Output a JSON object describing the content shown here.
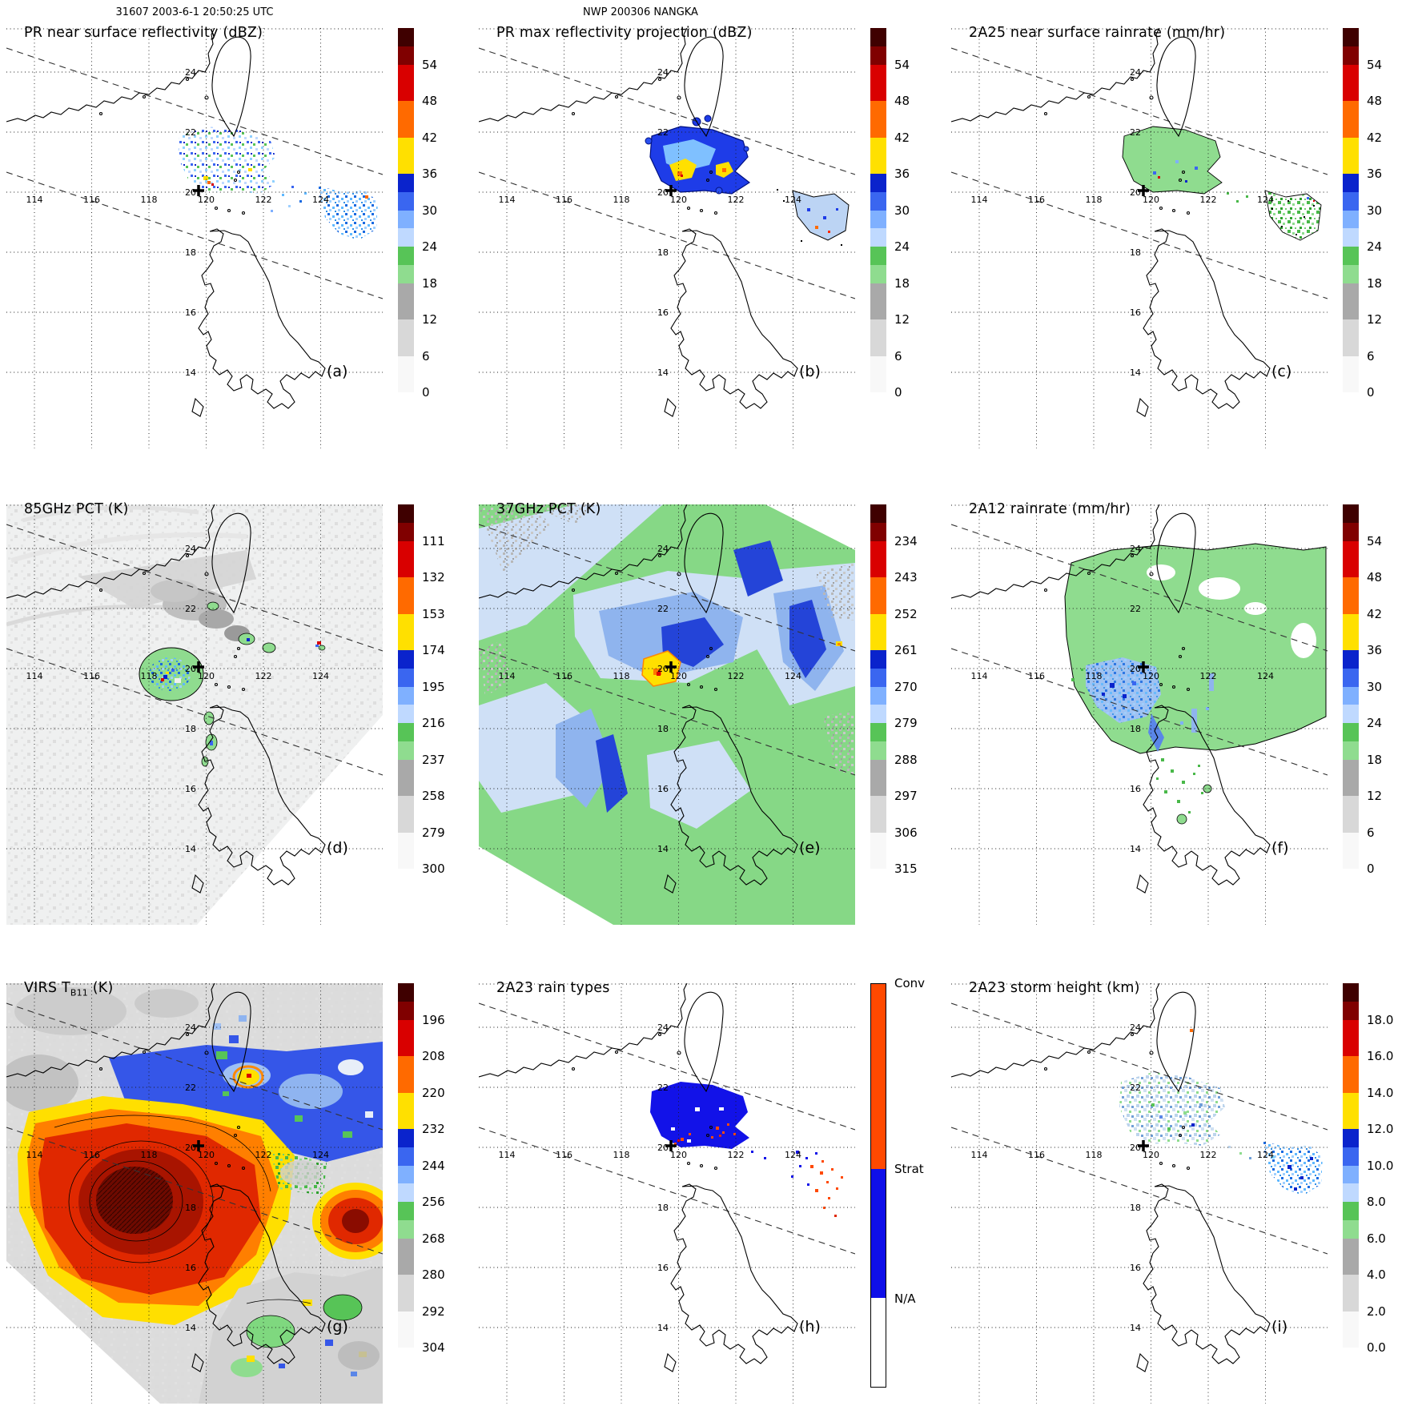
{
  "figure": {
    "header_left": "31607 2003-6-1 20:50:25 UTC",
    "header_center": "NWP 200306 NANGKA"
  },
  "axes": {
    "lon": [
      "114",
      "116",
      "118",
      "120",
      "122",
      "124"
    ],
    "lat": [
      "24",
      "22",
      "20",
      "18",
      "16",
      "14"
    ]
  },
  "panels": [
    {
      "letter": "(a)",
      "title": "PR near surface reflectivity (dBZ)",
      "scale": "dbz54"
    },
    {
      "letter": "(b)",
      "title": "PR max reflectivity projection (dBZ)",
      "scale": "dbz54"
    },
    {
      "letter": "(c)",
      "title": "2A25 near surface rainrate (mm/hr)",
      "scale": "dbz54"
    },
    {
      "letter": "(d)",
      "title": "85GHz PCT (K)",
      "scale": "pct85"
    },
    {
      "letter": "(e)",
      "title": "37GHz PCT (K)",
      "scale": "pct37"
    },
    {
      "letter": "(f)",
      "title": "2A12 rainrate (mm/hr)",
      "scale": "dbz54"
    },
    {
      "letter": "(g)",
      "title_pre": "VIRS T",
      "title_sub": "B11",
      "title_post": " (K)",
      "scale": "tb11"
    },
    {
      "letter": "(h)",
      "title": "2A23 rain types",
      "scale": "raintype"
    },
    {
      "letter": "(i)",
      "title": "2A23 storm height (km)",
      "scale": "height"
    }
  ],
  "scales": {
    "dbz54": {
      "type": "standard",
      "ticks": [
        "54",
        "48",
        "42",
        "36",
        "30",
        "24",
        "18",
        "12",
        "6",
        "0"
      ],
      "positions": [
        10,
        20,
        30,
        40,
        50,
        60,
        70,
        80,
        90,
        100
      ]
    },
    "pct85": {
      "type": "standard",
      "ticks": [
        "111",
        "132",
        "153",
        "174",
        "195",
        "216",
        "237",
        "258",
        "279",
        "300"
      ],
      "positions": [
        10,
        20,
        30,
        40,
        50,
        60,
        70,
        80,
        90,
        100
      ]
    },
    "pct37": {
      "type": "standard",
      "ticks": [
        "234",
        "243",
        "252",
        "261",
        "270",
        "279",
        "288",
        "297",
        "306",
        "315"
      ],
      "positions": [
        10,
        20,
        30,
        40,
        50,
        60,
        70,
        80,
        90,
        100
      ]
    },
    "tb11": {
      "type": "standard",
      "ticks": [
        "196",
        "208",
        "220",
        "232",
        "244",
        "256",
        "268",
        "280",
        "292",
        "304"
      ],
      "positions": [
        10,
        20,
        30,
        40,
        50,
        60,
        70,
        80,
        90,
        100
      ]
    },
    "height": {
      "type": "standard",
      "ticks": [
        "18.0",
        "16.0",
        "14.0",
        "12.0",
        "10.0",
        "8.0",
        "6.0",
        "4.0",
        "2.0",
        "0.0"
      ],
      "positions": [
        10,
        20,
        30,
        40,
        50,
        60,
        70,
        80,
        90,
        100
      ]
    },
    "raintype": {
      "type": "raintype",
      "ticks": [
        "Conv",
        "Strat",
        "N/A"
      ],
      "positions": [
        0,
        46,
        78
      ]
    }
  },
  "colors": {
    "segments_standard": [
      "#3f0000",
      "#800000",
      "#d90000",
      "#ff6a00",
      "#ffe000",
      "#0a23cc",
      "#3a66f0",
      "#7fb0ff",
      "#bfd9ff",
      "#57c457",
      "#8fdc8f",
      "#a9a9a9",
      "#d8d8d8",
      "#f8f8f8"
    ],
    "segment_heights": [
      5,
      5,
      10,
      10,
      10,
      5,
      5,
      5,
      5,
      5,
      5,
      10,
      10,
      10
    ],
    "raintype_segments": [
      "#ff4900",
      "#0f0fe8",
      "#ffffff"
    ],
    "raintype_heights": [
      46,
      32,
      22
    ],
    "land_outline": "#000000",
    "grid": "#1a1a1a"
  },
  "chart_data": {
    "type": "heatmap",
    "layout": "3x3 panel satellite overpass maps, shared lon/lat grid, vertical colorbars right of each map",
    "x_ticks_lon": [
      114,
      116,
      118,
      120,
      122,
      124
    ],
    "y_ticks_lat": [
      24,
      22,
      20,
      18,
      16,
      14
    ],
    "storm_center_marker_lonlat_approx": [
      119.8,
      20.0
    ],
    "panels": [
      {
        "label": "a",
        "title": "PR near surface reflectivity (dBZ)",
        "units": "dBZ",
        "colorbar_ticks": [
          54,
          48,
          42,
          36,
          30,
          24,
          18,
          12,
          6,
          0
        ]
      },
      {
        "label": "b",
        "title": "PR max reflectivity projection (dBZ)",
        "units": "dBZ",
        "colorbar_ticks": [
          54,
          48,
          42,
          36,
          30,
          24,
          18,
          12,
          6,
          0
        ]
      },
      {
        "label": "c",
        "title": "2A25 near surface rainrate (mm/hr)",
        "units": "mm/hr",
        "colorbar_ticks": [
          54,
          48,
          42,
          36,
          30,
          24,
          18,
          12,
          6,
          0
        ]
      },
      {
        "label": "d",
        "title": "85GHz PCT (K)",
        "units": "K",
        "colorbar_ticks": [
          111,
          132,
          153,
          174,
          195,
          216,
          237,
          258,
          279,
          300
        ]
      },
      {
        "label": "e",
        "title": "37GHz PCT (K)",
        "units": "K",
        "colorbar_ticks": [
          234,
          243,
          252,
          261,
          270,
          279,
          288,
          297,
          306,
          315
        ]
      },
      {
        "label": "f",
        "title": "2A12 rainrate (mm/hr)",
        "units": "mm/hr",
        "colorbar_ticks": [
          54,
          48,
          42,
          36,
          30,
          24,
          18,
          12,
          6,
          0
        ]
      },
      {
        "label": "g",
        "title": "VIRS TB11 (K)",
        "units": "K",
        "colorbar_ticks": [
          196,
          208,
          220,
          232,
          244,
          256,
          268,
          280,
          292,
          304
        ]
      },
      {
        "label": "h",
        "title": "2A23 rain types",
        "categories": [
          "Conv",
          "Strat",
          "N/A"
        ]
      },
      {
        "label": "i",
        "title": "2A23 storm height (km)",
        "units": "km",
        "colorbar_ticks": [
          18.0,
          16.0,
          14.0,
          12.0,
          10.0,
          8.0,
          6.0,
          4.0,
          2.0,
          0.0
        ]
      }
    ]
  }
}
